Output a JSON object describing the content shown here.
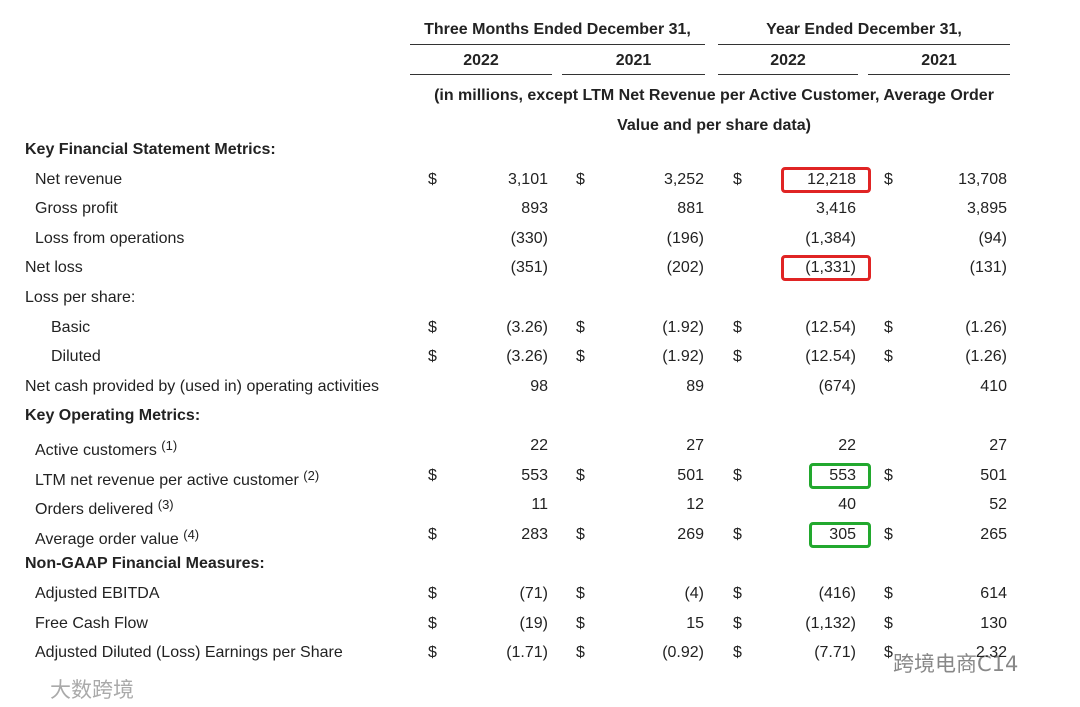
{
  "header": {
    "groups": [
      "Three Months Ended December 31,",
      "Year Ended December 31,"
    ],
    "years": [
      "2022",
      "2021",
      "2022",
      "2021"
    ],
    "note": "(in millions, except LTM Net Revenue per Active Customer, Average Order Value and per share data)"
  },
  "sections": [
    {
      "title": "Key Financial Statement Metrics:",
      "rows": [
        {
          "label": "Net revenue",
          "currency": "$",
          "values": [
            "3,101",
            "3,252",
            "12,218",
            "13,708"
          ]
        },
        {
          "label": "Gross profit",
          "values": [
            "893",
            "881",
            "3,416",
            "3,895"
          ]
        },
        {
          "label": "Loss from operations",
          "values": [
            "(330)",
            "(196)",
            "(1,384)",
            "(94)"
          ]
        },
        {
          "label": "Net loss",
          "values": [
            "(351)",
            "(202)",
            "(1,331)",
            "(131)"
          ]
        },
        {
          "label": "Loss per share:"
        },
        {
          "label": "Basic",
          "currency": "$",
          "values": [
            "(3.26)",
            "(1.92)",
            "(12.54)",
            "(1.26)"
          ]
        },
        {
          "label": "Diluted",
          "currency": "$",
          "values": [
            "(3.26)",
            "(1.92)",
            "(12.54)",
            "(1.26)"
          ]
        },
        {
          "label": "Net cash provided by (used in) operating activities",
          "values": [
            "98",
            "89",
            "(674)",
            "410"
          ]
        }
      ]
    },
    {
      "title": "Key Operating Metrics:",
      "rows": [
        {
          "label": "Active customers",
          "note": "(1)",
          "values": [
            "22",
            "27",
            "22",
            "27"
          ]
        },
        {
          "label": "LTM net revenue per active customer",
          "note": "(2)",
          "currency": "$",
          "values": [
            "553",
            "501",
            "553",
            "501"
          ]
        },
        {
          "label": "Orders delivered",
          "note": "(3)",
          "values": [
            "11",
            "12",
            "40",
            "52"
          ]
        },
        {
          "label": "Average order value",
          "note": "(4)",
          "currency": "$",
          "values": [
            "283",
            "269",
            "305",
            "265"
          ]
        }
      ]
    },
    {
      "title": "Non-GAAP Financial Measures:",
      "rows": [
        {
          "label": "Adjusted EBITDA",
          "currency": "$",
          "values": [
            "(71)",
            "(4)",
            "(416)",
            "614"
          ]
        },
        {
          "label": "Free Cash Flow",
          "currency": "$",
          "values": [
            "(19)",
            "15",
            "(1,132)",
            "130"
          ]
        },
        {
          "label": "Adjusted Diluted (Loss) Earnings per Share",
          "currency": "$",
          "values": [
            "(1.71)",
            "(0.92)",
            "(7.71)",
            "2.32"
          ]
        }
      ]
    }
  ],
  "watermarks": [
    "大数跨境",
    "跨境电商C14"
  ]
}
